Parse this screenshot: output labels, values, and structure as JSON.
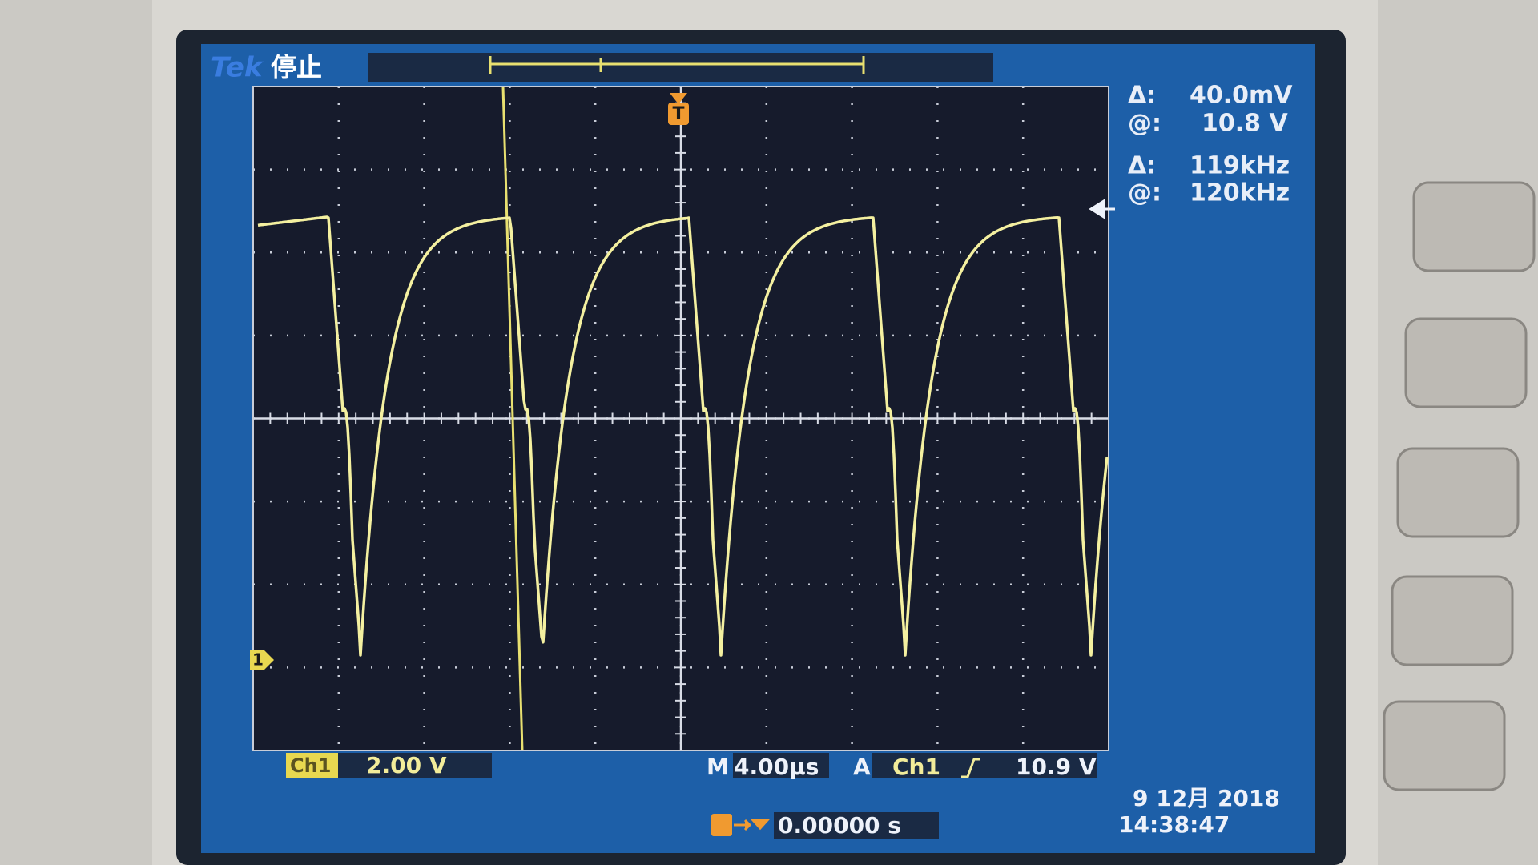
{
  "header": {
    "brand": "Tek",
    "status": "停止"
  },
  "readouts": [
    {
      "symbol": "Δ:",
      "value": "40.0mV"
    },
    {
      "symbol": "@:",
      "value": "10.8 V"
    },
    {
      "symbol": "Δ:",
      "value": "119kHz"
    },
    {
      "symbol": "@:",
      "value": "120kHz"
    }
  ],
  "markers": {
    "trigger": "T",
    "channel": "1"
  },
  "footer": {
    "channel": "Ch1",
    "scale": "2.00 V",
    "timebase_prefix": "M",
    "timebase": "4.00µs",
    "trigger_mode": "A",
    "trigger_source": "Ch1",
    "trigger_level": "10.9 V",
    "trigger_position": "0.00000 s",
    "date": "9 12月 2018",
    "time": "14:38:47"
  }
}
